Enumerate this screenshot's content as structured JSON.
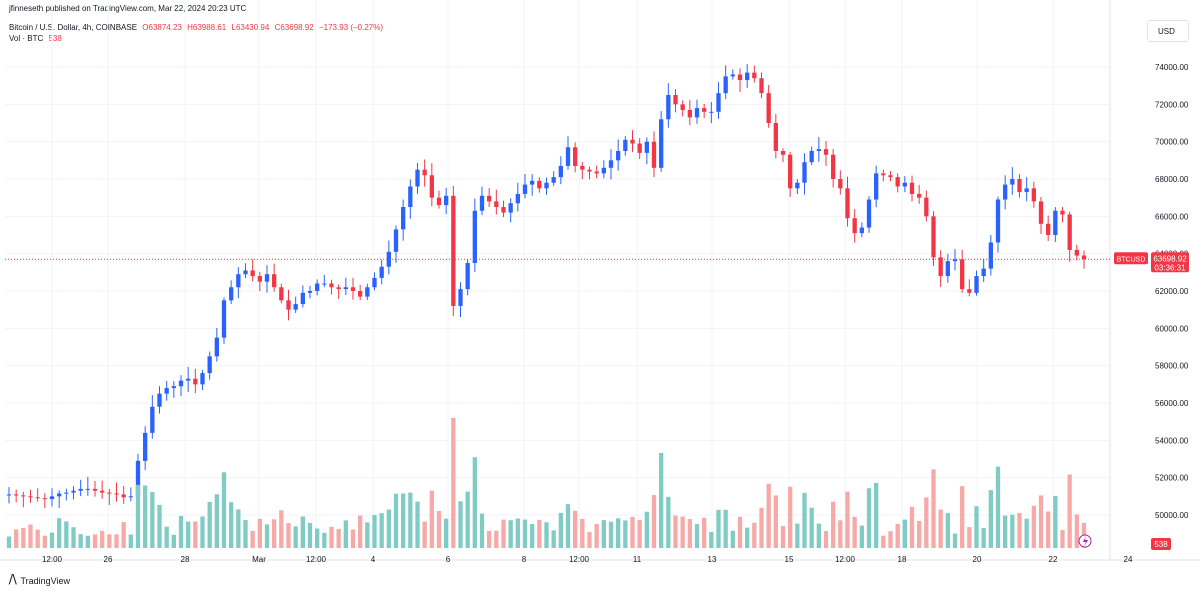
{
  "header": {
    "published": "jfinneseth published on TradingView.com, Mar 22, 2024 20:23 UTC",
    "symbol": "Bitcoin / U.S. Dollar, 4h, COINBASE",
    "open": "O63874.23",
    "high": "H63988.61",
    "low": "L63430.94",
    "close": "C63698.92",
    "change": "−173.93 (−0.27%)",
    "volume_label": "Vol · BTC",
    "volume_value": "538"
  },
  "currency": "USD",
  "footer": {
    "brand": "TradingView"
  },
  "colors": {
    "up": "#2962ff",
    "down": "#f23645",
    "vol_up": "#80cbc4",
    "vol_down": "#f7a9a7",
    "grid": "#f0f3fa"
  },
  "chart_data": {
    "type": "candlestick",
    "interval": "4h",
    "y_ticks": [
      "74000.00",
      "72000.00",
      "70000.00",
      "68000.00",
      "66000.00",
      "64000.00",
      "62000.00",
      "60000.00",
      "58000.00",
      "56000.00",
      "54000.00",
      "52000.00",
      "50000.00"
    ],
    "ylim": [
      49000,
      75500
    ],
    "x_ticks": [
      "12:00",
      "26",
      "28",
      "Mar",
      "12:00",
      "4",
      "6",
      "8",
      "12:00",
      "11",
      "13",
      "15",
      "12:00",
      "18",
      "20",
      "22",
      "24"
    ],
    "last_price_label": "BTCUSD",
    "last_price": "63698.92",
    "countdown": "03:36:31",
    "volume_last": "538",
    "closes": [
      51100,
      51050,
      51000,
      50950,
      50900,
      50850,
      51000,
      51150,
      51200,
      51300,
      51400,
      51400,
      51300,
      51200,
      51150,
      51100,
      50950,
      51000,
      52900,
      54400,
      55800,
      56500,
      56800,
      56900,
      57200,
      57300,
      57000,
      57600,
      58500,
      59500,
      61500,
      62200,
      62900,
      63100,
      62800,
      62500,
      62900,
      62200,
      61500,
      61000,
      61300,
      61900,
      62000,
      62400,
      62400,
      62200,
      62100,
      62200,
      62000,
      61700,
      62200,
      62700,
      63300,
      64100,
      65300,
      66500,
      67600,
      68500,
      68200,
      67000,
      66600,
      67100,
      61200,
      62100,
      63500,
      66300,
      67100,
      66800,
      66500,
      66200,
      66700,
      67200,
      67700,
      67900,
      67500,
      67800,
      68100,
      68700,
      69700,
      68700,
      68500,
      68400,
      68300,
      68600,
      69000,
      69500,
      70100,
      69900,
      69400,
      70000,
      68600,
      71200,
      72500,
      72000,
      71700,
      71300,
      71800,
      71600,
      71600,
      72600,
      73500,
      73600,
      73300,
      73700,
      73400,
      72600,
      71000,
      69500,
      69300,
      67500,
      67800,
      68900,
      69500,
      69600,
      69300,
      68000,
      67500,
      65900,
      65100,
      65400,
      66900,
      68300,
      68200,
      68100,
      67600,
      67800,
      67200,
      67000,
      66000,
      63800,
      62800,
      63600,
      63700,
      62100,
      61900,
      62800,
      63200,
      64600,
      66900,
      67700,
      68000,
      67300,
      67500,
      66800,
      65600,
      65000,
      66300,
      66100,
      64200,
      63900,
      63700
    ]
  }
}
